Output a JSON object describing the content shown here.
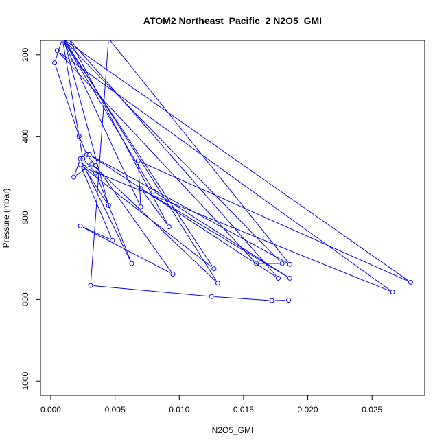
{
  "chart_data": {
    "type": "line",
    "title": "ATOM2 Northeast_Pacific_2 N2O5_GMI",
    "xlabel": "N2O5_GMI",
    "ylabel": "Pressure (mbar)",
    "xlim": [
      -0.0008,
      0.0291
    ],
    "ylim": [
      1035,
      165
    ],
    "y_reversed": true,
    "x_ticks": [
      0.0,
      0.005,
      0.01,
      0.015,
      0.02,
      0.025
    ],
    "x_tick_labels": [
      "0.000",
      "0.005",
      "0.010",
      "0.015",
      "0.020",
      "0.025"
    ],
    "y_ticks": [
      200,
      400,
      600,
      800,
      1000
    ],
    "y_tick_labels": [
      "200",
      "400",
      "600",
      "800",
      "1000"
    ],
    "grid": false,
    "series_color": "#0000ff",
    "series": [
      {
        "points": [
          [
            0.0009,
            160
          ],
          [
            0.0003,
            220
          ],
          [
            0.0022,
            400
          ],
          [
            0.0028,
            445
          ],
          [
            0.0035,
            472
          ],
          [
            0.0095,
            738
          ],
          [
            0.0023,
            620
          ],
          [
            0.0048,
            655
          ],
          [
            0.0023,
            470
          ],
          [
            0.0127,
            725
          ],
          [
            0.0009,
            160
          ],
          [
            0.0025,
            455
          ],
          [
            0.0035,
            490
          ],
          [
            0.0063,
            712
          ],
          [
            0.0023,
            455
          ],
          [
            0.0018,
            500
          ],
          [
            0.0032,
            468
          ],
          [
            0.013,
            760
          ],
          [
            0.001,
            160
          ],
          [
            0.0045,
            570
          ],
          [
            0.0026,
            477
          ],
          [
            0.0266,
            782
          ],
          [
            0.0005,
            190
          ],
          [
            0.016,
            712
          ],
          [
            0.018,
            712
          ],
          [
            0.0009,
            160
          ],
          [
            0.007,
            573
          ],
          [
            0.0068,
            460
          ],
          [
            0.028,
            758
          ],
          [
            0.0009,
            160
          ],
          [
            0.008,
            535
          ],
          [
            0.0186,
            748
          ],
          [
            0.007,
            528
          ],
          [
            0.0092,
            622
          ],
          [
            0.0014,
            160
          ],
          [
            0.0177,
            748
          ],
          [
            0.003,
            445
          ],
          [
            0.0186,
            714
          ],
          [
            0.0045,
            160
          ],
          [
            0.0031,
            766
          ],
          [
            0.0125,
            793
          ],
          [
            0.0172,
            803
          ],
          [
            0.0185,
            802
          ]
        ]
      }
    ]
  }
}
